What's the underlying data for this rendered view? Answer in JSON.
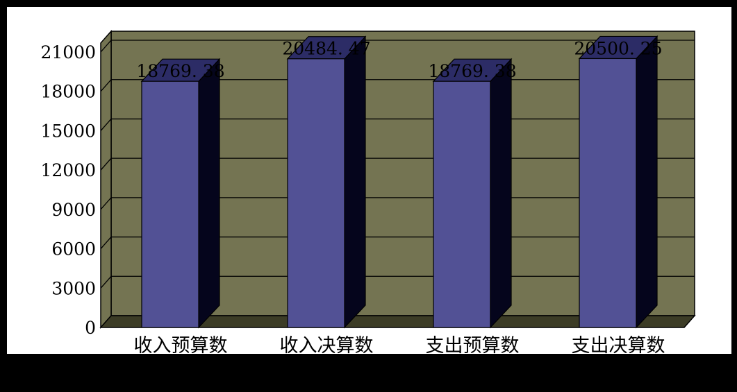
{
  "chart_data": {
    "type": "bar",
    "style": "3d-column",
    "categories": [
      "收入预算数",
      "收入决算数",
      "支出预算数",
      "支出决算数"
    ],
    "values": [
      18769.38,
      20484.47,
      18769.38,
      20500.25
    ],
    "value_labels": [
      "18769. 38",
      "20484. 47",
      "18769. 38",
      "20500. 25"
    ],
    "ylim": [
      0,
      21000
    ],
    "yticks": [
      0,
      3000,
      6000,
      9000,
      12000,
      15000,
      18000,
      21000
    ],
    "ytick_labels": [
      "0",
      "3000",
      "6000",
      "9000",
      "12000",
      "15000",
      "18000",
      "21000"
    ],
    "grid": true,
    "legend": "none",
    "title": "",
    "xlabel": "",
    "ylabel": ""
  },
  "colors": {
    "wall": "#747452",
    "floor": "#3c3c26",
    "bar_front": "#525195",
    "bar_side": "#05051c",
    "bar_top": "#2c2c66",
    "page_bg": "#ffffff",
    "frame": "#000000"
  }
}
